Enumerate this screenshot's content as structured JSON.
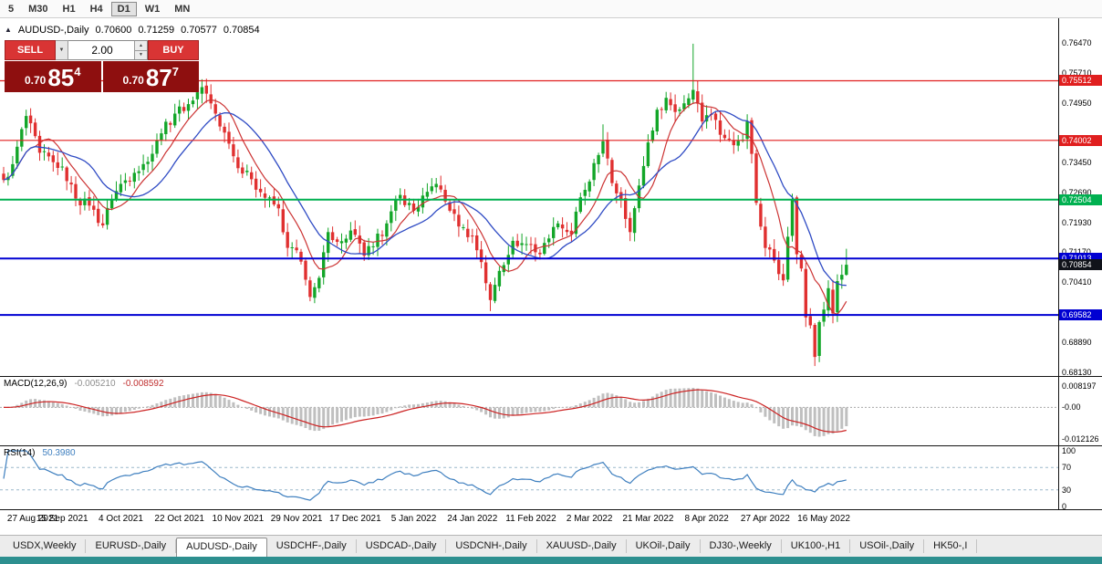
{
  "toolbar": {
    "timeframes": [
      {
        "label": "5",
        "active": false
      },
      {
        "label": "M30",
        "active": false
      },
      {
        "label": "H1",
        "active": false
      },
      {
        "label": "H4",
        "active": false
      },
      {
        "label": "D1",
        "active": true
      },
      {
        "label": "W1",
        "active": false
      },
      {
        "label": "MN",
        "active": false
      }
    ]
  },
  "chart": {
    "title": "AUDUSD-,Daily",
    "ohlc": {
      "open": "0.70600",
      "high": "0.71259",
      "low": "0.70577",
      "close": "0.70854"
    },
    "y_ticks": [
      {
        "v": 0.7647,
        "label": "0.76470"
      },
      {
        "v": 0.7571,
        "label": "0.75710"
      },
      {
        "v": 0.7495,
        "label": "0.74950"
      },
      {
        "v": 0.7345,
        "label": "0.73450"
      },
      {
        "v": 0.7269,
        "label": "0.72690"
      },
      {
        "v": 0.7193,
        "label": "0.71930"
      },
      {
        "v": 0.7117,
        "label": "0.71170"
      },
      {
        "v": 0.7041,
        "label": "0.70410"
      },
      {
        "v": 0.6889,
        "label": "0.68890"
      },
      {
        "v": 0.6813,
        "label": "0.68130"
      }
    ],
    "levels": [
      {
        "price": 0.75512,
        "tag": "0.75512",
        "color": "#e01f1f"
      },
      {
        "price": 0.74002,
        "tag": "0.74002",
        "color": "#e01f1f"
      },
      {
        "price": 0.72504,
        "tag": "0.72504",
        "color": "#00b050"
      },
      {
        "price": 0.71013,
        "tag": "0.71013",
        "color": "#0000d2"
      },
      {
        "price": 0.69582,
        "tag": "0.69582",
        "color": "#0000d2"
      }
    ],
    "current_price": {
      "value": 0.70854,
      "label": "0.70854",
      "color": "#10131a"
    }
  },
  "trade_panel": {
    "sell_label": "SELL",
    "buy_label": "BUY",
    "volume": "2.00",
    "sell_price": {
      "prefix": "0.70",
      "big": "85",
      "sup": "4"
    },
    "buy_price": {
      "prefix": "0.70",
      "big": "87",
      "sup": "7"
    }
  },
  "macd": {
    "label": "MACD(12,26,9)",
    "value_main": "-0.005210",
    "value_signal": "-0.008592",
    "axis": [
      {
        "v": 0.008197,
        "label": "0.008197"
      },
      {
        "v": 0,
        "label": "-0.00"
      },
      {
        "v": -0.012126,
        "label": "-0.012126"
      }
    ]
  },
  "rsi": {
    "label": "RSI(14)",
    "value": "50.3980",
    "levels": [
      70,
      30
    ],
    "axis": [
      {
        "v": 100,
        "label": "100"
      },
      {
        "v": 70,
        "label": "70"
      },
      {
        "v": 30,
        "label": "30"
      },
      {
        "v": 0,
        "label": "0"
      }
    ]
  },
  "time_axis": {
    "labels": [
      {
        "i": 0,
        "label": "27 Aug 2021"
      },
      {
        "i": 13,
        "label": "15 Sep 2021"
      },
      {
        "i": 26,
        "label": "4 Oct 2021"
      },
      {
        "i": 39,
        "label": "22 Oct 2021"
      },
      {
        "i": 52,
        "label": "10 Nov 2021"
      },
      {
        "i": 65,
        "label": "29 Nov 2021"
      },
      {
        "i": 78,
        "label": "17 Dec 2021"
      },
      {
        "i": 91,
        "label": "5 Jan 2022"
      },
      {
        "i": 104,
        "label": "24 Jan 2022"
      },
      {
        "i": 117,
        "label": "11 Feb 2022"
      },
      {
        "i": 130,
        "label": "2 Mar 2022"
      },
      {
        "i": 143,
        "label": "21 Mar 2022"
      },
      {
        "i": 156,
        "label": "8 Apr 2022"
      },
      {
        "i": 169,
        "label": "27 Apr 2022"
      },
      {
        "i": 182,
        "label": "16 May 2022"
      }
    ]
  },
  "tabs": [
    {
      "label": "USDX,Weekly",
      "active": false
    },
    {
      "label": "EURUSD-,Daily",
      "active": false
    },
    {
      "label": "AUDUSD-,Daily",
      "active": true
    },
    {
      "label": "USDCHF-,Daily",
      "active": false
    },
    {
      "label": "USDCAD-,Daily",
      "active": false
    },
    {
      "label": "USDCNH-,Daily",
      "active": false
    },
    {
      "label": "XAUUSD-,Daily",
      "active": false
    },
    {
      "label": "UKOil-,Daily",
      "active": false
    },
    {
      "label": "DJ30-,Weekly",
      "active": false
    },
    {
      "label": "UK100-,H1",
      "active": false
    },
    {
      "label": "USOil-,Daily",
      "active": false
    },
    {
      "label": "HK50-,I",
      "active": false
    }
  ],
  "colors": {
    "candle_up": "#13a629",
    "candle_down": "#e03030",
    "ma_fast": "#cc3333",
    "ma_slow": "#2f4bc4",
    "macd_hist": "#bfbfbf",
    "macd_signal": "#cc2222",
    "rsi_line": "#3e7fbf",
    "rsi_level": "#9cb8cc",
    "level_red": "#e01f1f",
    "level_green": "#00b050",
    "level_blue": "#0000d2",
    "current_tag": "#10131a",
    "button_red": "#d93434",
    "price_box_red": "#8e0f0f",
    "accent_teal": "#2d8f8f"
  },
  "chart_data": {
    "type": "candlestick",
    "symbol": "AUDUSD-",
    "timeframe": "Daily",
    "title": "AUDUSD-,Daily",
    "bars_total": 188,
    "bar_spacing": 4.94,
    "noise": 0.003,
    "y_range_visible": [
      0.6813,
      0.7647
    ],
    "current_ohlc": {
      "open": 0.706,
      "high": 0.71259,
      "low": 0.70577,
      "close": 0.70854
    },
    "anchors": [
      [
        0,
        0.73
      ],
      [
        2,
        0.734
      ],
      [
        5,
        0.7462
      ],
      [
        8,
        0.7369
      ],
      [
        11,
        0.7345
      ],
      [
        13,
        0.7334
      ],
      [
        16,
        0.7253
      ],
      [
        19,
        0.7235
      ],
      [
        22,
        0.7185
      ],
      [
        24,
        0.7252
      ],
      [
        26,
        0.729
      ],
      [
        29,
        0.7318
      ],
      [
        32,
        0.7346
      ],
      [
        35,
        0.7418
      ],
      [
        38,
        0.7468
      ],
      [
        41,
        0.7492
      ],
      [
        44,
        0.7535
      ],
      [
        47,
        0.7468
      ],
      [
        50,
        0.7392
      ],
      [
        52,
        0.733
      ],
      [
        55,
        0.7302
      ],
      [
        58,
        0.7255
      ],
      [
        61,
        0.7228
      ],
      [
        63,
        0.7128
      ],
      [
        65,
        0.7122
      ],
      [
        68,
        0.7004
      ],
      [
        70,
        0.7052
      ],
      [
        72,
        0.7168
      ],
      [
        75,
        0.7145
      ],
      [
        77,
        0.7172
      ],
      [
        80,
        0.7108
      ],
      [
        82,
        0.7132
      ],
      [
        85,
        0.719
      ],
      [
        88,
        0.7262
      ],
      [
        91,
        0.7222
      ],
      [
        94,
        0.727
      ],
      [
        96,
        0.729
      ],
      [
        99,
        0.7222
      ],
      [
        101,
        0.7182
      ],
      [
        104,
        0.7158
      ],
      [
        106,
        0.7092
      ],
      [
        108,
        0.6996
      ],
      [
        110,
        0.707
      ],
      [
        113,
        0.7146
      ],
      [
        115,
        0.714
      ],
      [
        117,
        0.7136
      ],
      [
        119,
        0.7112
      ],
      [
        121,
        0.7152
      ],
      [
        123,
        0.719
      ],
      [
        126,
        0.7162
      ],
      [
        128,
        0.7256
      ],
      [
        130,
        0.7296
      ],
      [
        133,
        0.7398
      ],
      [
        135,
        0.7292
      ],
      [
        137,
        0.7252
      ],
      [
        139,
        0.7168
      ],
      [
        141,
        0.7286
      ],
      [
        143,
        0.7395
      ],
      [
        145,
        0.7478
      ],
      [
        147,
        0.7508
      ],
      [
        149,
        0.7472
      ],
      [
        151,
        0.7494
      ],
      [
        153,
        0.7528
      ],
      [
        155,
        0.7448
      ],
      [
        156,
        0.7464
      ],
      [
        158,
        0.7452
      ],
      [
        160,
        0.7406
      ],
      [
        162,
        0.7388
      ],
      [
        164,
        0.7402
      ],
      [
        165,
        0.7448
      ],
      [
        166,
        0.7366
      ],
      [
        167,
        0.7242
      ],
      [
        168,
        0.7182
      ],
      [
        169,
        0.7128
      ],
      [
        170,
        0.7124
      ],
      [
        171,
        0.7096
      ],
      [
        172,
        0.7062
      ],
      [
        173,
        0.7046
      ],
      [
        175,
        0.7252
      ],
      [
        176,
        0.7112
      ],
      [
        177,
        0.7076
      ],
      [
        178,
        0.6952
      ],
      [
        179,
        0.6932
      ],
      [
        180,
        0.6852
      ],
      [
        181,
        0.694
      ],
      [
        182,
        0.6972
      ],
      [
        183,
        0.7026
      ],
      [
        184,
        0.6962
      ],
      [
        185,
        0.7044
      ],
      [
        186,
        0.706
      ],
      [
        187,
        0.70854
      ]
    ],
    "overrides": {
      "5": {
        "high": 0.7478
      },
      "44": {
        "high": 0.7555
      },
      "68": {
        "low": 0.6993
      },
      "108": {
        "low": 0.6968
      },
      "133": {
        "high": 0.7441
      },
      "153": {
        "high": 0.7645
      },
      "180": {
        "low": 0.6829
      },
      "187": {
        "open": 0.706,
        "high": 0.71259,
        "low": 0.70577,
        "close": 0.70854
      }
    },
    "indicators": {
      "ma_fast": 8,
      "ma_slow": 16,
      "macd": [
        12,
        26,
        9
      ],
      "rsi": 14
    }
  }
}
